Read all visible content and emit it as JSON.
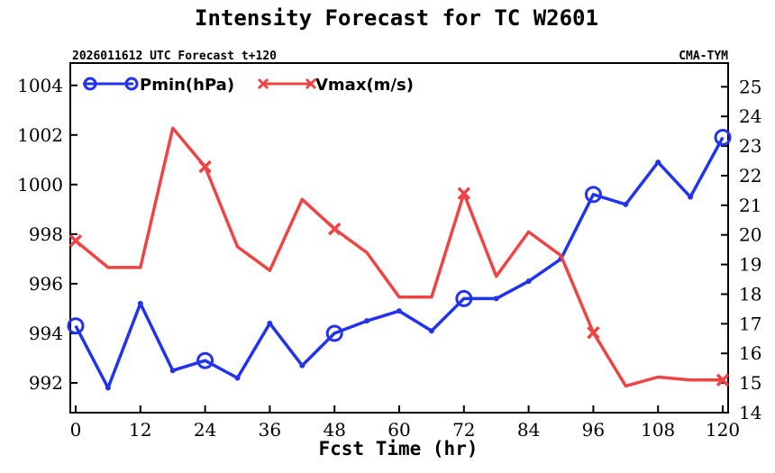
{
  "chart_data": {
    "type": "line",
    "title": "Intensity Forecast for TC W2601",
    "subtitle_left": "2026011612 UTC Forecast t+120",
    "subtitle_right": "CMA-TYM",
    "xlabel": "Fcst Time (hr)",
    "x_ticks": [
      0,
      12,
      24,
      36,
      48,
      60,
      72,
      84,
      96,
      108,
      120
    ],
    "xlim": [
      -1,
      121
    ],
    "y_left": {
      "ylim": [
        990.8,
        1004.9
      ],
      "ticks": [
        992,
        994,
        996,
        998,
        1000,
        1002,
        1004
      ]
    },
    "y_right": {
      "ylim": [
        14,
        25.8
      ],
      "ticks": [
        14,
        15,
        16,
        17,
        18,
        19,
        20,
        21,
        22,
        23,
        24,
        25
      ]
    },
    "x": [
      0,
      6,
      12,
      18,
      24,
      30,
      36,
      42,
      48,
      54,
      60,
      66,
      72,
      78,
      84,
      90,
      96,
      102,
      108,
      114,
      120
    ],
    "series": [
      {
        "name": "Pmin(hPa)",
        "axis": "left",
        "color": "#2233ee",
        "marker": "circle",
        "marker_every": 4,
        "values": [
          994.3,
          991.8,
          995.2,
          992.5,
          992.9,
          992.2,
          994.4,
          992.7,
          994.0,
          994.5,
          994.9,
          994.1,
          995.4,
          995.4,
          996.1,
          997.0,
          999.6,
          999.2,
          1000.9,
          999.5,
          1001.9
        ]
      },
      {
        "name": "Vmax(m/s)",
        "axis": "right",
        "color": "#ee4444",
        "marker": "x",
        "marker_every": 4,
        "values": [
          19.8,
          18.9,
          18.9,
          23.6,
          22.3,
          19.6,
          18.8,
          21.2,
          20.2,
          19.4,
          17.9,
          17.9,
          21.4,
          18.6,
          20.1,
          19.3,
          16.7,
          14.9,
          15.2,
          15.1,
          15.1
        ]
      }
    ],
    "legend_position": "top-left"
  }
}
